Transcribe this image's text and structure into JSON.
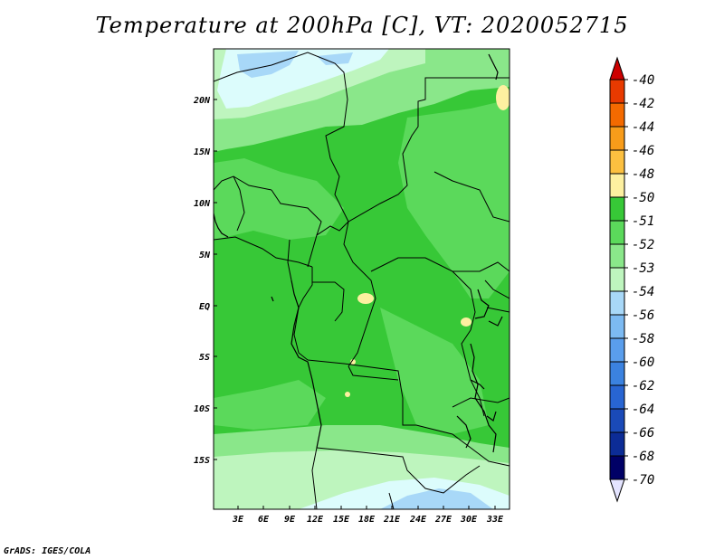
{
  "title": "Temperature at 200hPa [C], VT: 2020052715",
  "credit": "GrADS: IGES/COLA",
  "lat_labels": [
    "20N",
    "15N",
    "10N",
    "5N",
    "EQ",
    "5S",
    "10S",
    "15S"
  ],
  "lon_labels": [
    "3E",
    "6E",
    "9E",
    "12E",
    "15E",
    "18E",
    "21E",
    "24E",
    "27E",
    "30E",
    "33E"
  ],
  "colorbar": {
    "labels": [
      "-40",
      "-42",
      "-44",
      "-46",
      "-48",
      "-50",
      "-51",
      "-52",
      "-53",
      "-54",
      "-56",
      "-58",
      "-60",
      "-62",
      "-64",
      "-66",
      "-68",
      "-70"
    ],
    "colors": [
      "#c00000",
      "#e83a00",
      "#f46a00",
      "#f89c1a",
      "#fcc040",
      "#fdf0a0",
      "#37c837",
      "#5bd95b",
      "#8ae78a",
      "#bef5be",
      "#a8d8f8",
      "#7cbaf2",
      "#5a9eec",
      "#3b82e0",
      "#2865d2",
      "#1a4ab8",
      "#0c2c96",
      "#000066"
    ],
    "top_color": "#cc0000",
    "bottom_color": "#e4e4ff"
  },
  "fields": {
    "main": "#37c837",
    "medium": "#5bd95b",
    "light": "#8ae78a",
    "pale": "#bef5be",
    "cyan": "#dcfcfc",
    "blue": "#a8d8f8",
    "yellow": "#fdf0a0"
  }
}
